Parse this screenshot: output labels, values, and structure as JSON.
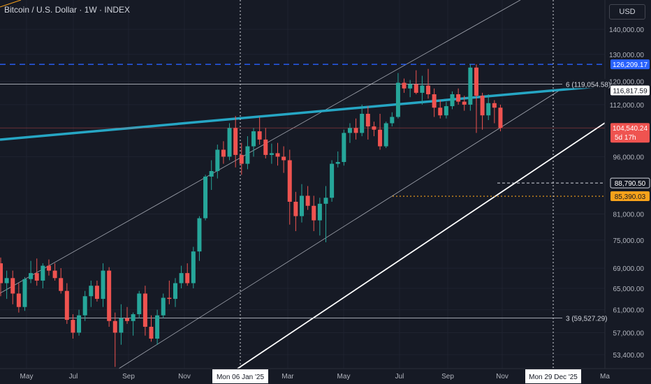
{
  "header": {
    "title": "Bitcoin / U.S. Dollar · 1W · INDEX",
    "currency": "USD"
  },
  "chart_data": {
    "type": "candlestick",
    "y_scale": "log",
    "ylim": [
      51500,
      150000
    ],
    "y_ticks": [
      {
        "value": 140000,
        "label": "140,000.00"
      },
      {
        "value": 130000,
        "label": "130,000.00"
      },
      {
        "value": 120000,
        "label": "120,000.00"
      },
      {
        "value": 112000,
        "label": "112,000.00"
      },
      {
        "value": 96000,
        "label": "96,000.00"
      },
      {
        "value": 81000,
        "label": "81,000.00"
      },
      {
        "value": 75000,
        "label": "75,000.00"
      },
      {
        "value": 69000,
        "label": "69,000.00"
      },
      {
        "value": 65000,
        "label": "65,000.00"
      },
      {
        "value": 61000,
        "label": "61,000.00"
      },
      {
        "value": 57000,
        "label": "57,000.00"
      },
      {
        "value": 53400,
        "label": "53,400.00"
      }
    ],
    "x_labels": [
      "May",
      "Jul",
      "Sep",
      "Nov",
      "Mar",
      "May",
      "Jul",
      "Sep",
      "Nov",
      "Ma"
    ],
    "crosshair_labels": [
      "Mon 06 Jan '25",
      "Mon 29 Dec '25"
    ],
    "price_tags": [
      {
        "value": 126209.17,
        "label": "126,209.17",
        "style": "blue"
      },
      {
        "value": 116817.59,
        "label": "116,817.59",
        "style": "white"
      },
      {
        "value": 104540.24,
        "label": "104,540.24",
        "sub": "5d 17h",
        "style": "red"
      },
      {
        "value": 88790.5,
        "label": "88,790.50",
        "style": "dark"
      },
      {
        "value": 85390.03,
        "label": "85,390.03",
        "style": "orange"
      }
    ],
    "fib_labels": [
      {
        "value": 119054.58,
        "label": "6 (119,054.58)"
      },
      {
        "value": 59527.29,
        "label": "3 (59,527.29)"
      }
    ],
    "candles": [
      [
        70000,
        71200,
        63500,
        66000
      ],
      [
        66000,
        68500,
        63000,
        67000
      ],
      [
        67000,
        68500,
        62000,
        64000
      ],
      [
        64000,
        66000,
        60500,
        61500
      ],
      [
        61500,
        67200,
        60800,
        66800
      ],
      [
        66800,
        70500,
        66000,
        68000
      ],
      [
        68000,
        71000,
        65500,
        66500
      ],
      [
        66500,
        70000,
        65000,
        69500
      ],
      [
        69500,
        70800,
        67500,
        68500
      ],
      [
        68500,
        70000,
        66500,
        67000
      ],
      [
        67000,
        69000,
        64000,
        64500
      ],
      [
        64500,
        66000,
        58500,
        59200
      ],
      [
        59200,
        60200,
        56000,
        57000
      ],
      [
        57000,
        61000,
        56500,
        60000
      ],
      [
        60000,
        64500,
        59000,
        63500
      ],
      [
        63500,
        66500,
        61500,
        65500
      ],
      [
        65500,
        66500,
        62500,
        63000
      ],
      [
        63000,
        70000,
        61500,
        68500
      ],
      [
        68500,
        69200,
        58000,
        59000
      ],
      [
        59000,
        60500,
        51500,
        57000
      ],
      [
        57000,
        62000,
        55000,
        59500
      ],
      [
        59500,
        61500,
        58500,
        59000
      ],
      [
        59000,
        60500,
        56500,
        60200
      ],
      [
        60200,
        64500,
        59500,
        64000
      ],
      [
        64000,
        65500,
        56500,
        58000
      ],
      [
        58000,
        60000,
        55500,
        56000
      ],
      [
        56000,
        61000,
        55000,
        60000
      ],
      [
        60000,
        64000,
        59500,
        63200
      ],
      [
        63200,
        66500,
        62000,
        63000
      ],
      [
        63000,
        67000,
        61500,
        66000
      ],
      [
        66000,
        69500,
        65000,
        68000
      ],
      [
        68000,
        70000,
        65500,
        66000
      ],
      [
        66000,
        73500,
        65000,
        72500
      ],
      [
        72500,
        80500,
        70500,
        80000
      ],
      [
        80000,
        91000,
        79500,
        90500
      ],
      [
        90500,
        95000,
        87000,
        92000
      ],
      [
        92000,
        99500,
        90000,
        98000
      ],
      [
        98000,
        100500,
        94000,
        96000
      ],
      [
        96000,
        106000,
        95000,
        104500
      ],
      [
        104500,
        108300,
        93000,
        96500
      ],
      [
        96500,
        100000,
        91000,
        94000
      ],
      [
        94000,
        102000,
        92500,
        99000
      ],
      [
        99000,
        104500,
        96000,
        103500
      ],
      [
        103500,
        108000,
        99500,
        101000
      ],
      [
        101000,
        104500,
        95500,
        96500
      ],
      [
        96500,
        99800,
        94000,
        97000
      ],
      [
        97000,
        100000,
        93500,
        96000
      ],
      [
        96000,
        99000,
        91500,
        95000
      ],
      [
        95000,
        98000,
        78500,
        84000
      ],
      [
        84000,
        86500,
        77000,
        80500
      ],
      [
        80500,
        88500,
        79000,
        85500
      ],
      [
        85500,
        88000,
        82000,
        83000
      ],
      [
        83000,
        85500,
        77000,
        79500
      ],
      [
        79500,
        85000,
        76000,
        83500
      ],
      [
        83500,
        88000,
        74500,
        85000
      ],
      [
        85000,
        95000,
        84000,
        94000
      ],
      [
        94000,
        97500,
        93000,
        94500
      ],
      [
        94500,
        104000,
        93500,
        103000
      ],
      [
        103000,
        106000,
        100000,
        104500
      ],
      [
        104500,
        107500,
        101000,
        103000
      ],
      [
        103000,
        112000,
        102000,
        109000
      ],
      [
        109000,
        111500,
        101000,
        105000
      ],
      [
        105000,
        106500,
        102000,
        104000
      ],
      [
        104000,
        109000,
        98000,
        99000
      ],
      [
        99000,
        106500,
        98500,
        106000
      ],
      [
        106000,
        109500,
        105000,
        108000
      ],
      [
        108000,
        123000,
        107500,
        119500
      ],
      [
        119500,
        121000,
        116000,
        117500
      ],
      [
        117500,
        120500,
        114500,
        119000
      ],
      [
        119000,
        124000,
        115500,
        116000
      ],
      [
        116000,
        122000,
        112000,
        118500
      ],
      [
        118500,
        124500,
        114000,
        115500
      ],
      [
        115500,
        117500,
        108000,
        111000
      ],
      [
        111000,
        113500,
        107500,
        108500
      ],
      [
        108500,
        113000,
        107500,
        111500
      ],
      [
        111500,
        116500,
        110500,
        115500
      ],
      [
        115500,
        117500,
        112000,
        113000
      ],
      [
        113000,
        115000,
        110000,
        112000
      ],
      [
        112000,
        126200,
        110000,
        125000
      ],
      [
        125000,
        126209,
        103000,
        115000
      ],
      [
        115000,
        116000,
        104000,
        108500
      ],
      [
        108500,
        115500,
        107000,
        112500
      ],
      [
        112500,
        113500,
        106000,
        111000
      ],
      [
        111000,
        112000,
        103500,
        104540
      ]
    ],
    "candle_dates": [],
    "levels": [
      {
        "value": 126209.17,
        "style": "blue-dashed"
      },
      {
        "value": 88790.5,
        "style": "white-dashed"
      },
      {
        "value": 85390.03,
        "style": "orange-dotted"
      }
    ],
    "colors": {
      "up": "#26a69a",
      "down": "#ef5350",
      "trendline": "#26a6c4",
      "blue": "#2962ff",
      "orange": "#f7a21b",
      "background": "#161a25"
    }
  }
}
